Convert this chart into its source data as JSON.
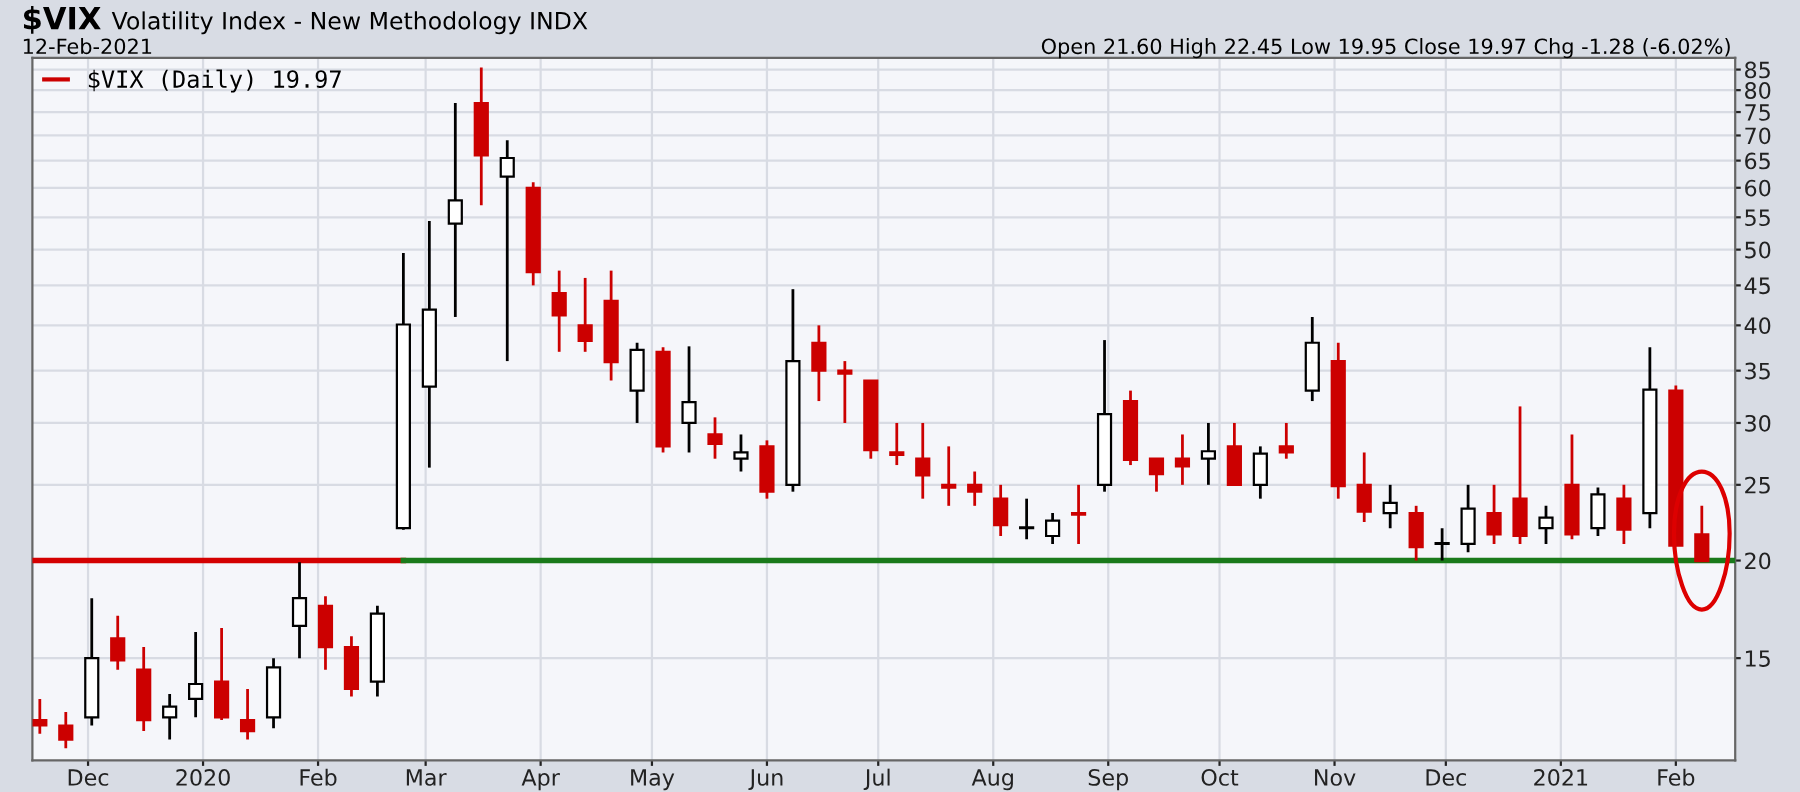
{
  "chart_data": {
    "type": "candlestick",
    "title": "$VIX",
    "subtitle": "Volatility Index - New Methodology INDX",
    "annotations": [
      "12-Feb-2021",
      "Open 21.60 High 22.45 Low 19.95 Close 19.97 Chg -1.28 (-6.02%)"
    ],
    "log": true,
    "ylim": [
      11.1,
      88
    ],
    "yticks": [
      15,
      20,
      25,
      30,
      35,
      40,
      45,
      50,
      55,
      60,
      65,
      70,
      75,
      80,
      85
    ],
    "xlim": [
      "2019-11-16",
      "2021-02-17"
    ],
    "xticks": [
      {
        "value": "2019-12-01",
        "label": "Dec"
      },
      {
        "value": "2020-01-01",
        "label": "2020"
      },
      {
        "value": "2020-02-01",
        "label": "Feb"
      },
      {
        "value": "2020-03-01",
        "label": "Mar"
      },
      {
        "value": "2020-04-01",
        "label": "Apr"
      },
      {
        "value": "2020-05-01",
        "label": "May"
      },
      {
        "value": "2020-06-01",
        "label": "Jun"
      },
      {
        "value": "2020-07-01",
        "label": "Jul"
      },
      {
        "value": "2020-08-01",
        "label": "Aug"
      },
      {
        "value": "2020-09-01",
        "label": "Sep"
      },
      {
        "value": "2020-10-01",
        "label": "Oct"
      },
      {
        "value": "2020-11-01",
        "label": "Nov"
      },
      {
        "value": "2020-12-01",
        "label": "Dec"
      },
      {
        "value": "2021-01-01",
        "label": "2021"
      },
      {
        "value": "2021-02-01",
        "label": "Feb"
      }
    ],
    "grid": true,
    "legend": "top left",
    "series": [
      {
        "name": "$VIX (Daily) 19.97",
        "colors": [
          "#cc0000",
          "#cc0000",
          "#000000",
          "#cc0000",
          "#cc0000",
          "#000000",
          "#000000",
          "#cc0000",
          "#cc0000",
          "#000000",
          "#000000",
          "#cc0000",
          "#cc0000",
          "#000000",
          "#000000",
          "#000000",
          "#000000",
          "#cc0000",
          "#000000",
          "#cc0000",
          "#cc0000",
          "#cc0000",
          "#cc0000",
          "#000000",
          "#cc0000",
          "#000000",
          "#cc0000",
          "#000000",
          "#cc0000",
          "#000000",
          "#cc0000",
          "#cc0000",
          "#cc0000",
          "#cc0000",
          "#cc0000",
          "#cc0000",
          "#cc0000",
          "#cc0000",
          "#000000",
          "#000000",
          "#cc0000",
          "#000000",
          "#cc0000",
          "#cc0000",
          "#cc0000",
          "#000000",
          "#cc0000",
          "#000000",
          "#cc0000",
          "#000000",
          "#cc0000",
          "#cc0000",
          "#000000",
          "#cc0000",
          "#000000",
          "#000000",
          "#cc0000",
          "#cc0000",
          "#000000",
          "#cc0000",
          "#000000",
          "#cc0000",
          "#000000",
          "#cc0000",
          "#cc0000"
        ],
        "x": [
          "2019-11-18",
          "2019-11-25",
          "2019-12-02",
          "2019-12-09",
          "2019-12-16",
          "2019-12-23",
          "2019-12-30",
          "2020-01-06",
          "2020-01-13",
          "2020-01-20",
          "2020-01-27",
          "2020-02-03",
          "2020-02-10",
          "2020-02-17",
          "2020-02-24",
          "2020-03-02",
          "2020-03-09",
          "2020-03-16",
          "2020-03-23",
          "2020-03-30",
          "2020-04-06",
          "2020-04-13",
          "2020-04-20",
          "2020-04-27",
          "2020-05-04",
          "2020-05-11",
          "2020-05-18",
          "2020-05-25",
          "2020-06-01",
          "2020-06-08",
          "2020-06-15",
          "2020-06-22",
          "2020-06-29",
          "2020-07-06",
          "2020-07-13",
          "2020-07-20",
          "2020-07-27",
          "2020-08-03",
          "2020-08-10",
          "2020-08-17",
          "2020-08-24",
          "2020-08-31",
          "2020-09-07",
          "2020-09-14",
          "2020-09-21",
          "2020-09-28",
          "2020-10-05",
          "2020-10-12",
          "2020-10-19",
          "2020-10-26",
          "2020-11-02",
          "2020-11-09",
          "2020-11-16",
          "2020-11-23",
          "2020-11-30",
          "2020-12-07",
          "2020-12-14",
          "2020-12-21",
          "2020-12-28",
          "2021-01-04",
          "2021-01-11",
          "2021-01-18",
          "2021-01-25",
          "2021-02-01",
          "2021-02-08"
        ],
        "ohlc": [
          [
            12.5,
            13.3,
            12.0,
            12.3
          ],
          [
            12.3,
            12.8,
            11.5,
            11.8
          ],
          [
            12.6,
            17.9,
            12.3,
            15.0
          ],
          [
            15.9,
            17.0,
            14.5,
            14.9
          ],
          [
            14.5,
            15.5,
            12.1,
            12.5
          ],
          [
            12.6,
            13.5,
            11.8,
            13.0
          ],
          [
            13.3,
            16.2,
            12.6,
            13.9
          ],
          [
            14.0,
            16.4,
            12.5,
            12.6
          ],
          [
            12.5,
            13.7,
            11.8,
            12.1
          ],
          [
            12.6,
            15.0,
            12.2,
            14.6
          ],
          [
            16.5,
            19.9,
            15.0,
            17.9
          ],
          [
            17.5,
            18.0,
            14.5,
            15.5
          ],
          [
            15.5,
            16.0,
            13.4,
            13.7
          ],
          [
            14.0,
            17.5,
            13.4,
            17.1
          ],
          [
            22.0,
            49.5,
            21.9,
            40.1
          ],
          [
            33.4,
            54.4,
            26.3,
            41.9
          ],
          [
            54.0,
            77.0,
            41.0,
            57.8
          ],
          [
            77.0,
            85.5,
            57.0,
            66.0
          ],
          [
            62.0,
            69.0,
            36.0,
            65.5
          ],
          [
            60.0,
            61.0,
            45.0,
            46.8
          ],
          [
            44.0,
            47.0,
            37.0,
            41.2
          ],
          [
            40.0,
            46.0,
            37.0,
            38.2
          ],
          [
            43.0,
            47.0,
            34.0,
            35.9
          ],
          [
            33.0,
            38.0,
            30.0,
            37.2
          ],
          [
            37.0,
            37.5,
            27.5,
            28.0
          ],
          [
            30.0,
            37.6,
            27.5,
            31.9
          ],
          [
            29.0,
            30.5,
            27.0,
            28.2
          ],
          [
            27.0,
            29.0,
            26.0,
            27.5
          ],
          [
            28.0,
            28.5,
            24.0,
            24.5
          ],
          [
            25.0,
            44.5,
            24.5,
            36.0
          ],
          [
            38.0,
            40.0,
            32.0,
            35.0
          ],
          [
            35.0,
            36.0,
            30.0,
            34.7
          ],
          [
            34.0,
            34.0,
            27.0,
            27.7
          ],
          [
            27.5,
            30.0,
            26.5,
            27.3
          ],
          [
            27.0,
            30.0,
            24.0,
            25.7
          ],
          [
            25.0,
            28.0,
            23.5,
            24.8
          ],
          [
            25.0,
            26.0,
            23.5,
            24.5
          ],
          [
            24.0,
            25.0,
            21.5,
            22.2
          ],
          [
            22.0,
            24.0,
            21.3,
            22.0
          ],
          [
            21.5,
            23.0,
            21.0,
            22.5
          ],
          [
            23.0,
            25.0,
            21.0,
            22.9
          ],
          [
            25.0,
            38.3,
            24.5,
            30.8
          ],
          [
            32.0,
            33.0,
            26.5,
            26.9
          ],
          [
            27.0,
            27.0,
            24.5,
            25.8
          ],
          [
            27.0,
            29.0,
            25.0,
            26.4
          ],
          [
            27.0,
            30.0,
            25.0,
            27.6
          ],
          [
            28.0,
            30.0,
            25.0,
            25.0
          ],
          [
            25.0,
            28.0,
            24.0,
            27.4
          ],
          [
            28.0,
            30.0,
            27.0,
            27.5
          ],
          [
            33.0,
            41.0,
            32.0,
            38.0
          ],
          [
            36.0,
            38.0,
            24.0,
            24.9
          ],
          [
            25.0,
            27.5,
            22.4,
            23.1
          ],
          [
            23.0,
            25.0,
            22.0,
            23.7
          ],
          [
            23.0,
            23.5,
            20.0,
            20.8
          ],
          [
            21.0,
            22.0,
            20.0,
            21.0
          ],
          [
            21.0,
            25.0,
            20.5,
            23.3
          ],
          [
            23.0,
            25.0,
            21.0,
            21.6
          ],
          [
            24.0,
            31.5,
            21.0,
            21.5
          ],
          [
            22.0,
            23.5,
            21.0,
            22.7
          ],
          [
            25.0,
            29.0,
            21.3,
            21.6
          ],
          [
            22.0,
            24.8,
            21.5,
            24.3
          ],
          [
            24.0,
            25.0,
            21.0,
            21.9
          ],
          [
            23.0,
            37.5,
            22.0,
            33.1
          ],
          [
            33.0,
            33.5,
            20.9,
            20.9
          ],
          [
            21.6,
            23.5,
            19.95,
            19.97
          ]
        ]
      },
      {
        "type": "line",
        "color": "#d40000",
        "x": [
          "2019-11-16",
          "2020-02-24"
        ],
        "values": [
          20,
          20
        ]
      },
      {
        "type": "line",
        "color": "#1a7a1a",
        "x": [
          "2020-02-24",
          "2021-02-17"
        ],
        "values": [
          20,
          20
        ]
      }
    ]
  }
}
